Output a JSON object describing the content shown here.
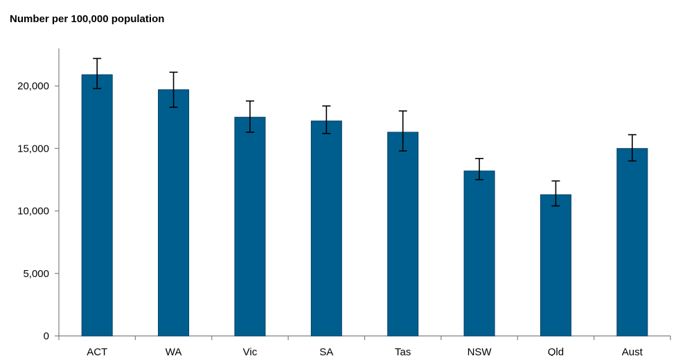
{
  "chart_data": {
    "type": "bar",
    "ylabel": "Number per 100,000 population",
    "categories": [
      "ACT",
      "WA",
      "Vic",
      "SA",
      "Tas",
      "NSW",
      "Qld",
      "Aust"
    ],
    "series": [
      {
        "values": [
          20900,
          19700,
          17500,
          17200,
          16300,
          13200,
          11300,
          15000
        ],
        "error_low": [
          19800,
          18300,
          16300,
          16200,
          14800,
          12500,
          10400,
          14000
        ],
        "error_high": [
          22200,
          21100,
          18800,
          18400,
          18000,
          14200,
          12400,
          16100
        ]
      }
    ],
    "ylim": [
      0,
      23000
    ],
    "yticks": [
      0,
      5000,
      10000,
      15000,
      20000
    ],
    "ytick_labels": [
      "0",
      "5,000",
      "10,000",
      "15,000",
      "20,000"
    ],
    "grid": false,
    "colors": {
      "bar": "#005e8e",
      "bar_stroke": "#003f60",
      "axis": "#7f7f7f",
      "error": "#000000"
    }
  }
}
